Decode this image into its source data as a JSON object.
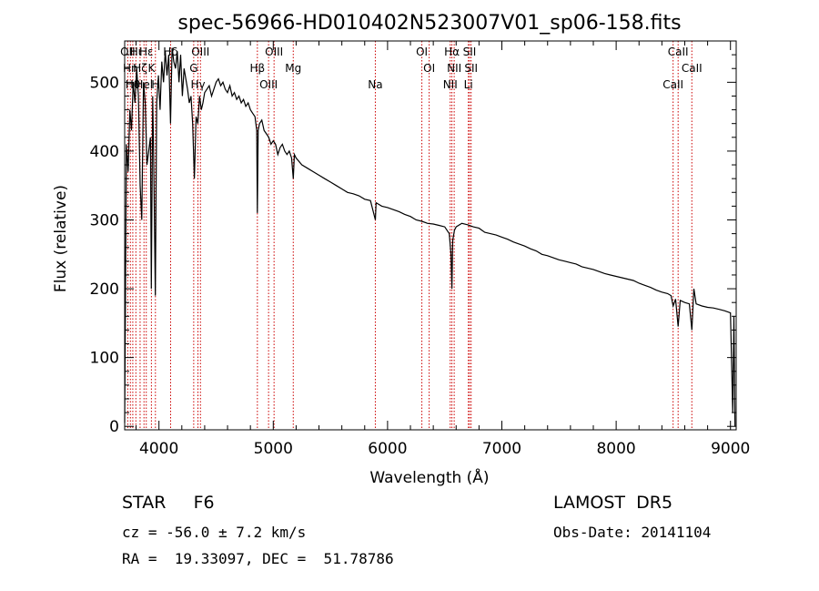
{
  "chart_data": {
    "type": "line",
    "title": "spec-56966-HD010402N523007V01_sp06-158.fits",
    "xlabel": "Wavelength (Å)",
    "ylabel": "Flux (relative)",
    "xlim": [
      3700,
      9050
    ],
    "ylim": [
      -5,
      560
    ],
    "xticks": [
      4000,
      5000,
      6000,
      7000,
      8000,
      9000
    ],
    "yticks": [
      0,
      100,
      200,
      300,
      400,
      500
    ],
    "grid": false,
    "series": [
      {
        "x": [
          3700,
          3715,
          3730,
          3745,
          3760,
          3775,
          3790,
          3805,
          3820,
          3835,
          3850,
          3865,
          3880,
          3895,
          3910,
          3925,
          3933,
          3945,
          3955,
          3968,
          3980,
          3995,
          4010,
          4025,
          4040,
          4055,
          4070,
          4085,
          4101,
          4115,
          4130,
          4145,
          4160,
          4175,
          4190,
          4205,
          4220,
          4235,
          4250,
          4265,
          4280,
          4295,
          4310,
          4325,
          4340,
          4355,
          4370,
          4385,
          4400,
          4420,
          4440,
          4460,
          4480,
          4500,
          4520,
          4540,
          4560,
          4580,
          4600,
          4620,
          4640,
          4660,
          4680,
          4700,
          4720,
          4740,
          4760,
          4780,
          4800,
          4820,
          4840,
          4855,
          4861,
          4868,
          4880,
          4900,
          4920,
          4940,
          4960,
          4980,
          5000,
          5020,
          5040,
          5060,
          5080,
          5100,
          5120,
          5140,
          5160,
          5175,
          5185,
          5200,
          5250,
          5300,
          5350,
          5400,
          5450,
          5500,
          5550,
          5600,
          5650,
          5700,
          5750,
          5800,
          5850,
          5893,
          5900,
          5950,
          6000,
          6050,
          6100,
          6150,
          6200,
          6250,
          6300,
          6350,
          6400,
          6450,
          6500,
          6540,
          6555,
          6563,
          6570,
          6585,
          6600,
          6650,
          6700,
          6750,
          6800,
          6850,
          6900,
          6950,
          7000,
          7050,
          7100,
          7150,
          7200,
          7250,
          7300,
          7350,
          7400,
          7450,
          7500,
          7550,
          7600,
          7650,
          7700,
          7750,
          7800,
          7850,
          7900,
          7950,
          8000,
          8050,
          8100,
          8150,
          8200,
          8250,
          8300,
          8350,
          8400,
          8450,
          8480,
          8498,
          8520,
          8542,
          8560,
          8600,
          8640,
          8662,
          8680,
          8700,
          8750,
          8800,
          8850,
          8900,
          8950,
          9000,
          9020,
          9030,
          9040
        ],
        "y": [
          5,
          410,
          370,
          460,
          430,
          500,
          470,
          520,
          480,
          350,
          300,
          500,
          470,
          380,
          400,
          420,
          200,
          480,
          380,
          190,
          470,
          510,
          460,
          530,
          500,
          545,
          510,
          540,
          440,
          550,
          530,
          520,
          545,
          500,
          540,
          480,
          520,
          505,
          490,
          470,
          480,
          440,
          360,
          450,
          440,
          480,
          460,
          470,
          485,
          490,
          495,
          480,
          490,
          500,
          505,
          495,
          500,
          490,
          485,
          495,
          480,
          485,
          475,
          480,
          470,
          475,
          465,
          470,
          460,
          455,
          450,
          430,
          310,
          430,
          440,
          445,
          430,
          425,
          420,
          410,
          415,
          410,
          395,
          405,
          410,
          400,
          395,
          400,
          390,
          360,
          395,
          390,
          380,
          375,
          370,
          365,
          360,
          355,
          350,
          345,
          340,
          338,
          335,
          330,
          328,
          300,
          325,
          320,
          318,
          315,
          312,
          308,
          305,
          300,
          298,
          295,
          294,
          292,
          290,
          280,
          250,
          200,
          270,
          285,
          290,
          295,
          293,
          290,
          288,
          282,
          280,
          278,
          275,
          272,
          268,
          265,
          262,
          258,
          255,
          250,
          248,
          245,
          242,
          240,
          238,
          236,
          232,
          230,
          228,
          225,
          222,
          220,
          218,
          216,
          214,
          212,
          208,
          205,
          202,
          198,
          195,
          193,
          190,
          175,
          185,
          145,
          183,
          180,
          178,
          140,
          200,
          178,
          175,
          173,
          172,
          170,
          168,
          165,
          20,
          160,
          0
        ]
      }
    ],
    "line_ids": [
      {
        "wave": 3727,
        "label": "OII"
      },
      {
        "wave": 3750,
        "label": "Hη"
      },
      {
        "wave": 3771,
        "label": "Hθ"
      },
      {
        "wave": 3798,
        "label": "Hι"
      },
      {
        "wave": 3835,
        "label": "Hζ"
      },
      {
        "wave": 3869,
        "label": "Hel"
      },
      {
        "wave": 3889,
        "label": "Hε"
      },
      {
        "wave": 3934,
        "label": "K"
      },
      {
        "wave": 3969,
        "label": "H"
      },
      {
        "wave": 4102,
        "label": "Hδ"
      },
      {
        "wave": 4304,
        "label": "G"
      },
      {
        "wave": 4341,
        "label": "Hγ"
      },
      {
        "wave": 4363,
        "label": "OIII"
      },
      {
        "wave": 4861,
        "label": "Hβ"
      },
      {
        "wave": 4959,
        "label": "OIII"
      },
      {
        "wave": 5007,
        "label": "OIII"
      },
      {
        "wave": 5175,
        "label": "Mg"
      },
      {
        "wave": 5893,
        "label": "Na"
      },
      {
        "wave": 6300,
        "label": "OI"
      },
      {
        "wave": 6364,
        "label": "OI"
      },
      {
        "wave": 6548,
        "label": "NII"
      },
      {
        "wave": 6563,
        "label": "Hα"
      },
      {
        "wave": 6583,
        "label": "NII"
      },
      {
        "wave": 6707,
        "label": "Li"
      },
      {
        "wave": 6717,
        "label": "SII"
      },
      {
        "wave": 6731,
        "label": "SII"
      },
      {
        "wave": 8498,
        "label": "CaII"
      },
      {
        "wave": 8542,
        "label": "CaII"
      },
      {
        "wave": 8662,
        "label": "CaII"
      }
    ],
    "line_color": "#000000",
    "marker_color": "#cc0000"
  },
  "info": {
    "class_line": "STAR     F6",
    "survey": "LAMOST  DR5",
    "cz": "cz = -56.0 ± 7.2 km/s",
    "obs_date": "Obs-Date: 20141104",
    "coords": "RA =  19.33097, DEC =  51.78786"
  }
}
